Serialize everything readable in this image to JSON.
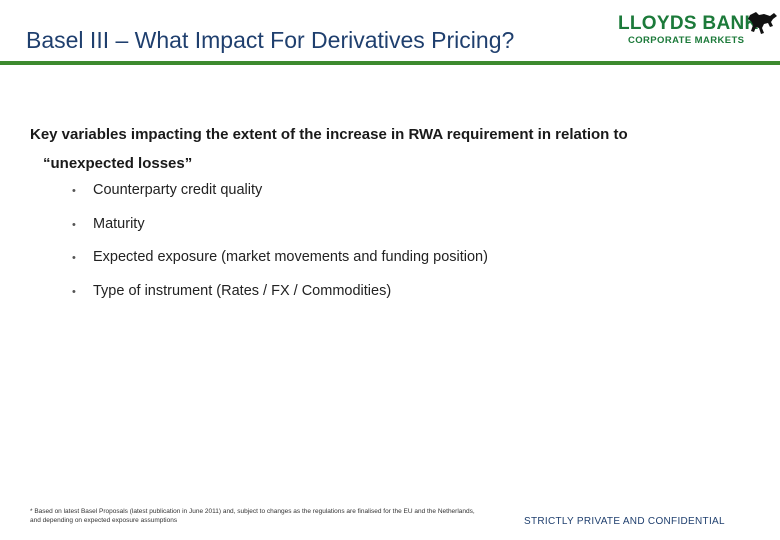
{
  "slide": {
    "title": "Basel III – What Impact For Derivatives Pricing?",
    "logo": {
      "name": "LLOYDS BANK",
      "subtitle": "CORPORATE MARKETS",
      "icon": "black-horse-icon",
      "color": "#1c7a3a"
    },
    "accent_rule_color": "#3d8a2e",
    "heading_line1": "Key variables impacting the extent of the increase in RWA requirement in relation to",
    "heading_line2": "“unexpected losses”",
    "bullets": [
      "Counterparty credit quality",
      "Maturity",
      "Expected exposure (market movements and funding position)",
      "Type of instrument (Rates / FX / Commodities)"
    ],
    "bullet_glyph": "•",
    "footnote": "* Based on latest Basel Proposals (latest publication in June 2011) and, subject to changes as the regulations are finalised for the EU and the Netherlands, and depending on expected exposure assumptions",
    "confidential_label": "STRICTLY PRIVATE AND CONFIDENTIAL"
  }
}
